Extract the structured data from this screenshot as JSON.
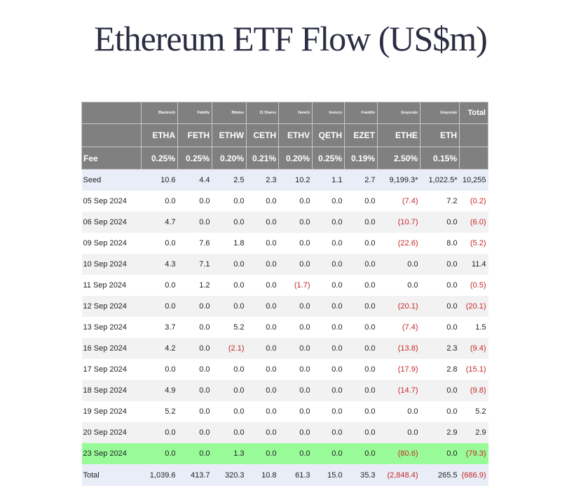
{
  "title": "Ethereum ETF Flow (US$m)",
  "colors": {
    "header_bg": "#808080",
    "negative": "#c62828",
    "highlight_row": "#98fb98",
    "seed_total_bg": "#e8edf7",
    "alt_row": "#f2f2f2"
  },
  "issuers": [
    "Blackrock",
    "Fidelity",
    "Bitwise",
    "21 Shares",
    "Vaneck",
    "Invesco",
    "Franklin",
    "Grayscale",
    "Grayscale"
  ],
  "total_header": "Total",
  "tickers": [
    "ETHA",
    "FETH",
    "ETHW",
    "CETH",
    "ETHV",
    "QETH",
    "EZET",
    "ETHE",
    "ETH"
  ],
  "fee_label": "Fee",
  "fees": [
    "0.25%",
    "0.25%",
    "0.20%",
    "0.21%",
    "0.20%",
    "0.25%",
    "0.19%",
    "2.50%",
    "0.15%"
  ],
  "rows": [
    {
      "label": "Seed",
      "style": "seed",
      "cells": [
        "10.6",
        "4.4",
        "2.5",
        "2.3",
        "10.2",
        "1.1",
        "2.7",
        "9,199.3*",
        "1,022.5*",
        "10,255"
      ]
    },
    {
      "label": "05 Sep 2024",
      "style": "white",
      "cells": [
        "0.0",
        "0.0",
        "0.0",
        "0.0",
        "0.0",
        "0.0",
        "0.0",
        "(7.4)",
        "7.2",
        "(0.2)"
      ]
    },
    {
      "label": "06 Sep 2024",
      "style": "grey",
      "cells": [
        "4.7",
        "0.0",
        "0.0",
        "0.0",
        "0.0",
        "0.0",
        "0.0",
        "(10.7)",
        "0.0",
        "(6.0)"
      ]
    },
    {
      "label": "09 Sep 2024",
      "style": "white",
      "cells": [
        "0.0",
        "7.6",
        "1.8",
        "0.0",
        "0.0",
        "0.0",
        "0.0",
        "(22.6)",
        "8.0",
        "(5.2)"
      ]
    },
    {
      "label": "10 Sep 2024",
      "style": "grey",
      "cells": [
        "4.3",
        "7.1",
        "0.0",
        "0.0",
        "0.0",
        "0.0",
        "0.0",
        "0.0",
        "0.0",
        "11.4"
      ]
    },
    {
      "label": "11 Sep 2024",
      "style": "white",
      "cells": [
        "0.0",
        "1.2",
        "0.0",
        "0.0",
        "(1.7)",
        "0.0",
        "0.0",
        "0.0",
        "0.0",
        "(0.5)"
      ]
    },
    {
      "label": "12 Sep 2024",
      "style": "grey",
      "cells": [
        "0.0",
        "0.0",
        "0.0",
        "0.0",
        "0.0",
        "0.0",
        "0.0",
        "(20.1)",
        "0.0",
        "(20.1)"
      ]
    },
    {
      "label": "13 Sep 2024",
      "style": "white",
      "cells": [
        "3.7",
        "0.0",
        "5.2",
        "0.0",
        "0.0",
        "0.0",
        "0.0",
        "(7.4)",
        "0.0",
        "1.5"
      ]
    },
    {
      "label": "16 Sep 2024",
      "style": "grey",
      "cells": [
        "4.2",
        "0.0",
        "(2.1)",
        "0.0",
        "0.0",
        "0.0",
        "0.0",
        "(13.8)",
        "2.3",
        "(9.4)"
      ]
    },
    {
      "label": "17 Sep 2024",
      "style": "white",
      "cells": [
        "0.0",
        "0.0",
        "0.0",
        "0.0",
        "0.0",
        "0.0",
        "0.0",
        "(17.9)",
        "2.8",
        "(15.1)"
      ]
    },
    {
      "label": "18 Sep 2024",
      "style": "grey",
      "cells": [
        "4.9",
        "0.0",
        "0.0",
        "0.0",
        "0.0",
        "0.0",
        "0.0",
        "(14.7)",
        "0.0",
        "(9.8)"
      ]
    },
    {
      "label": "19 Sep 2024",
      "style": "white",
      "cells": [
        "5.2",
        "0.0",
        "0.0",
        "0.0",
        "0.0",
        "0.0",
        "0.0",
        "0.0",
        "0.0",
        "5.2"
      ]
    },
    {
      "label": "20 Sep 2024",
      "style": "grey",
      "cells": [
        "0.0",
        "0.0",
        "0.0",
        "0.0",
        "0.0",
        "0.0",
        "0.0",
        "0.0",
        "2.9",
        "2.9"
      ]
    },
    {
      "label": "23 Sep 2024",
      "style": "hl",
      "cells": [
        "0.0",
        "0.0",
        "1.3",
        "0.0",
        "0.0",
        "0.0",
        "0.0",
        "(80.6)",
        "0.0",
        "(79.3)"
      ]
    },
    {
      "label": "Total",
      "style": "total",
      "cells": [
        "1,039.6",
        "413.7",
        "320.3",
        "10.8",
        "61.3",
        "15.0",
        "35.3",
        "(2,848.4)",
        "265.5",
        "(686.9)"
      ]
    }
  ]
}
